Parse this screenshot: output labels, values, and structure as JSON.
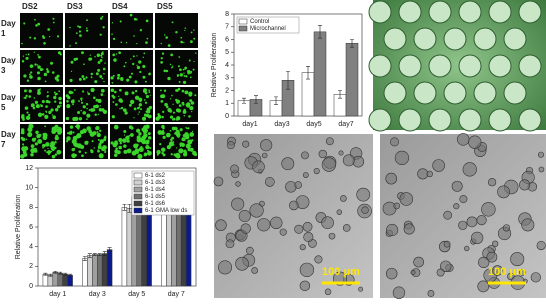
{
  "fluorescence_grid": {
    "columns": [
      "DS2",
      "DS3",
      "DS4",
      "DS5"
    ],
    "rows": [
      [
        "Day",
        "1"
      ],
      [
        "Day",
        "3"
      ],
      [
        "Day",
        "5"
      ],
      [
        "Day",
        "7"
      ]
    ]
  },
  "scale_bars": [
    "100 μm",
    "100 μm"
  ],
  "chart_data": [
    {
      "type": "bar",
      "ylabel": "Relative Proliferation",
      "categories": [
        "day1",
        "day3",
        "day5",
        "day7"
      ],
      "series": [
        {
          "name": "Control",
          "color": "#ffffff",
          "values": [
            1.2,
            1.2,
            3.4,
            1.7
          ],
          "errors": [
            0.2,
            0.3,
            0.5,
            0.3
          ]
        },
        {
          "name": "Microchannel",
          "color": "#808080",
          "values": [
            1.3,
            2.8,
            6.6,
            5.7
          ],
          "errors": [
            0.3,
            0.7,
            0.5,
            0.3
          ]
        }
      ],
      "ylim": [
        0,
        8
      ],
      "yticks": [
        0,
        1,
        2,
        3,
        4,
        5,
        6,
        7,
        8
      ],
      "legend": "upper left"
    },
    {
      "type": "bar",
      "ylabel": "Relative Proliferation",
      "categories": [
        "day 1",
        "day 3",
        "day 5",
        "day 7"
      ],
      "series": [
        {
          "name": "6-1 ds2",
          "color": "#ffffff",
          "values": [
            1.2,
            2.8,
            8.0,
            8.0
          ],
          "errors": [
            0.1,
            0.2,
            0.3,
            0.4
          ]
        },
        {
          "name": "6-1 ds3",
          "color": "#d0d0d0",
          "values": [
            1.1,
            3.1,
            7.9,
            10.0
          ],
          "errors": [
            0.1,
            0.2,
            0.4,
            0.6
          ]
        },
        {
          "name": "6-1 ds4",
          "color": "#a0a0a0",
          "values": [
            1.4,
            3.2,
            9.1,
            9.3
          ],
          "errors": [
            0.1,
            0.1,
            0.2,
            0.5
          ]
        },
        {
          "name": "6-1 ds5",
          "color": "#707070",
          "values": [
            1.3,
            3.2,
            8.8,
            8.9
          ],
          "errors": [
            0.1,
            0.1,
            0.2,
            0.3
          ]
        },
        {
          "name": "6-1 ds6",
          "color": "#404040",
          "values": [
            1.2,
            3.3,
            8.6,
            9.3
          ],
          "errors": [
            0.1,
            0.2,
            0.2,
            0.4
          ]
        },
        {
          "name": "6-1 GMA low ds",
          "color": "#0a1a8c",
          "values": [
            1.1,
            3.7,
            8.6,
            9.2
          ],
          "errors": [
            0.1,
            0.2,
            0.2,
            0.5
          ]
        }
      ],
      "ylim": [
        0,
        12
      ],
      "yticks": [
        0,
        2,
        4,
        6,
        8,
        10,
        12
      ],
      "legend": "upper right"
    }
  ]
}
